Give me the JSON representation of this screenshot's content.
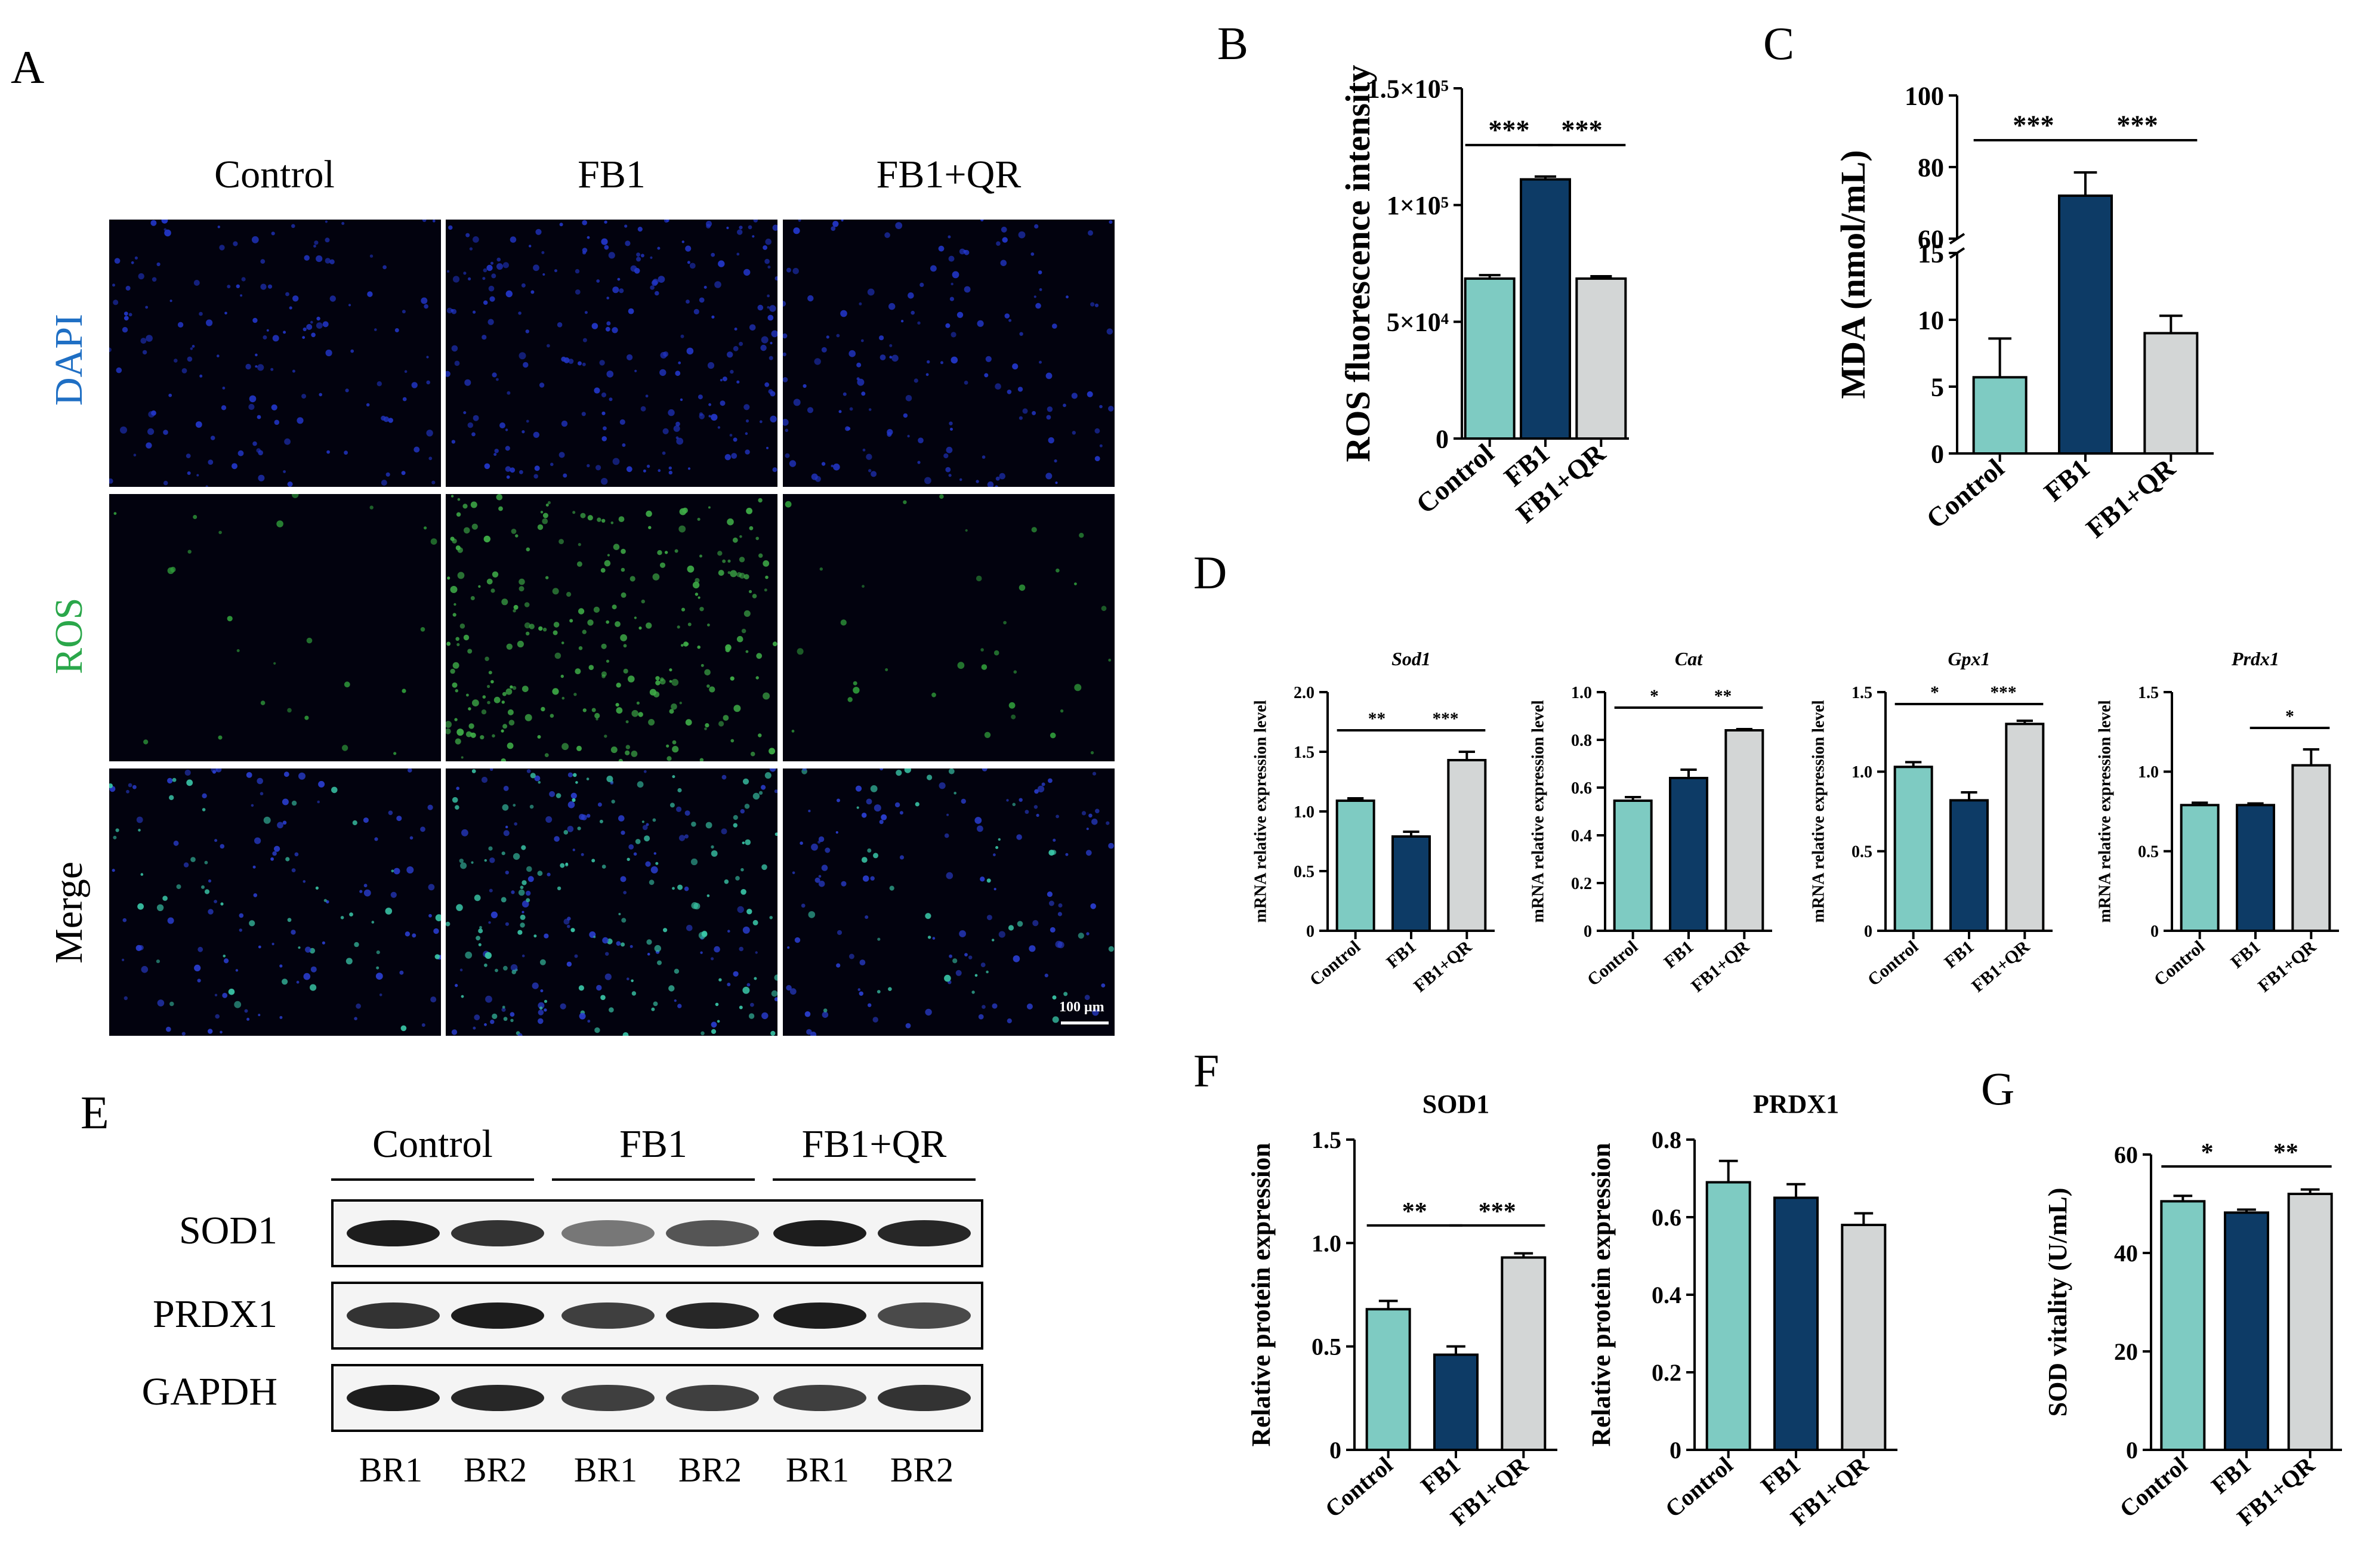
{
  "panel_letters": {
    "A": "A",
    "B": "B",
    "C": "C",
    "D": "D",
    "E": "E",
    "F": "F",
    "G": "G"
  },
  "panel_A": {
    "columns": [
      "Control",
      "FB1",
      "FB1+QR"
    ],
    "rows": [
      "DAPI",
      "ROS",
      "Merge"
    ],
    "row_colors": [
      "#1f6fc4",
      "#2aa74a",
      "#000000"
    ],
    "scale_bar": "100 μm"
  },
  "panel_E": {
    "groups": [
      "Control",
      "FB1",
      "FB1+QR"
    ],
    "proteins": [
      "SOD1",
      "PRDX1",
      "GAPDH"
    ],
    "lanes": [
      "BR1",
      "BR2",
      "BR1",
      "BR2",
      "BR1",
      "BR2"
    ]
  },
  "colors": {
    "control": "#7ecbc2",
    "fb1": "#0d3b66",
    "fb1qr": "#d3d6d6"
  },
  "chart_data": [
    {
      "id": "B",
      "type": "bar",
      "title": "",
      "ylabel": "ROS fluorescence intensity",
      "categories": [
        "Control",
        "FB1",
        "FB1+QR"
      ],
      "values": [
        68500,
        111000,
        68500
      ],
      "errors": [
        1500,
        1200,
        1000
      ],
      "ylim": [
        0,
        150000
      ],
      "yticks": [
        0,
        50000,
        100000,
        150000
      ],
      "ytick_labels": [
        "0",
        "5×10⁴",
        "1×10⁵",
        "1.5×10⁵"
      ],
      "sig": [
        {
          "from": 0,
          "to": 1,
          "label": "***"
        },
        {
          "from": 1,
          "to": 2,
          "label": "***"
        }
      ]
    },
    {
      "id": "C",
      "type": "bar",
      "title": "",
      "ylabel": "MDA (nmol/mL)",
      "categories": [
        "Control",
        "FB1",
        "FB1+QR"
      ],
      "values": [
        5.7,
        72,
        9
      ],
      "errors": [
        2.9,
        6.5,
        1.3
      ],
      "axis_break": {
        "lower": [
          0,
          15
        ],
        "upper": [
          60,
          100
        ]
      },
      "yticks": [
        0,
        5,
        10,
        15,
        60,
        80,
        100
      ],
      "ytick_labels": [
        "0",
        "5",
        "10",
        "15",
        "60",
        "80",
        "100"
      ],
      "sig": [
        {
          "from": 0,
          "to": 1,
          "label": "***"
        },
        {
          "from": 1,
          "to": 2,
          "label": "***"
        }
      ]
    },
    {
      "id": "D1",
      "type": "bar",
      "title": "Sod1",
      "ylabel": "mRNA relative expression level",
      "categories": [
        "Control",
        "FB1",
        "FB1+QR"
      ],
      "values": [
        1.09,
        0.79,
        1.43
      ],
      "errors": [
        0.02,
        0.04,
        0.07
      ],
      "ylim": [
        0,
        2.0
      ],
      "yticks": [
        0,
        0.5,
        1.0,
        1.5,
        2.0
      ],
      "ytick_labels": [
        "0",
        "0.5",
        "1.0",
        "1.5",
        "2.0"
      ],
      "sig": [
        {
          "from": 0,
          "to": 1,
          "label": "**"
        },
        {
          "from": 1,
          "to": 2,
          "label": "***"
        }
      ]
    },
    {
      "id": "D2",
      "type": "bar",
      "title": "Cat",
      "ylabel": "mRNA relative expression level",
      "categories": [
        "Control",
        "FB1",
        "FB1+QR"
      ],
      "values": [
        0.545,
        0.64,
        0.84
      ],
      "errors": [
        0.015,
        0.035,
        0.005
      ],
      "ylim": [
        0,
        1.0
      ],
      "yticks": [
        0,
        0.2,
        0.4,
        0.6,
        0.8,
        1.0
      ],
      "ytick_labels": [
        "0",
        "0.2",
        "0.4",
        "0.6",
        "0.8",
        "1.0"
      ],
      "sig": [
        {
          "from": 0,
          "to": 1,
          "label": "*"
        },
        {
          "from": 1,
          "to": 2,
          "label": "**"
        }
      ]
    },
    {
      "id": "D3",
      "type": "bar",
      "title": "Gpx1",
      "ylabel": "mRNA relative expression level",
      "categories": [
        "Control",
        "FB1",
        "FB1+QR"
      ],
      "values": [
        1.03,
        0.82,
        1.3
      ],
      "errors": [
        0.03,
        0.05,
        0.02
      ],
      "ylim": [
        0,
        1.5
      ],
      "yticks": [
        0,
        0.5,
        1.0,
        1.5
      ],
      "ytick_labels": [
        "0",
        "0.5",
        "1.0",
        "1.5"
      ],
      "sig": [
        {
          "from": 0,
          "to": 1,
          "label": "*"
        },
        {
          "from": 1,
          "to": 2,
          "label": "***"
        }
      ]
    },
    {
      "id": "D4",
      "type": "bar",
      "title": "Prdx1",
      "ylabel": "mRNA relative expression level",
      "categories": [
        "Control",
        "FB1",
        "FB1+QR"
      ],
      "values": [
        0.79,
        0.79,
        1.04
      ],
      "errors": [
        0.015,
        0.01,
        0.1
      ],
      "ylim": [
        0,
        1.5
      ],
      "yticks": [
        0,
        0.5,
        1.0,
        1.5
      ],
      "ytick_labels": [
        "0",
        "0.5",
        "1.0",
        "1.5"
      ],
      "sig": [
        {
          "from": 1,
          "to": 2,
          "label": "*"
        }
      ]
    },
    {
      "id": "F1",
      "type": "bar",
      "title": "SOD1",
      "ylabel": "Relative protein expression",
      "categories": [
        "Control",
        "FB1",
        "FB1+QR"
      ],
      "values": [
        0.68,
        0.46,
        0.93
      ],
      "errors": [
        0.04,
        0.04,
        0.02
      ],
      "ylim": [
        0,
        1.5
      ],
      "yticks": [
        0,
        0.5,
        1.0,
        1.5
      ],
      "ytick_labels": [
        "0",
        "0.5",
        "1.0",
        "1.5"
      ],
      "sig": [
        {
          "from": 0,
          "to": 1,
          "label": "**"
        },
        {
          "from": 1,
          "to": 2,
          "label": "***"
        }
      ]
    },
    {
      "id": "F2",
      "type": "bar",
      "title": "PRDX1",
      "ylabel": "Relative protein expression",
      "categories": [
        "Control",
        "FB1",
        "FB1+QR"
      ],
      "values": [
        0.69,
        0.65,
        0.58
      ],
      "errors": [
        0.055,
        0.035,
        0.03
      ],
      "ylim": [
        0,
        0.8
      ],
      "yticks": [
        0,
        0.2,
        0.4,
        0.6,
        0.8
      ],
      "ytick_labels": [
        "0",
        "0.2",
        "0.4",
        "0.6",
        "0.8"
      ],
      "sig": []
    },
    {
      "id": "G",
      "type": "bar",
      "title": "",
      "ylabel": "SOD vitality (U/mL)",
      "categories": [
        "Control",
        "FB1",
        "FB1+QR"
      ],
      "values": [
        50.5,
        48.2,
        52
      ],
      "errors": [
        1.1,
        0.6,
        0.9
      ],
      "ylim": [
        0,
        60
      ],
      "yticks": [
        0,
        20,
        40,
        60
      ],
      "ytick_labels": [
        "0",
        "20",
        "40",
        "60"
      ],
      "sig": [
        {
          "from": 0,
          "to": 1,
          "label": "*"
        },
        {
          "from": 1,
          "to": 2,
          "label": "**"
        }
      ]
    }
  ]
}
